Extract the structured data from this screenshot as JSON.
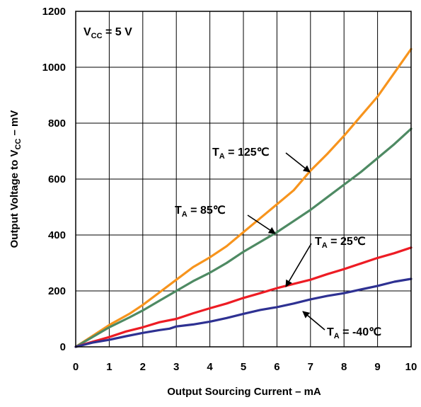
{
  "chart_data": {
    "type": "line",
    "xlabel": "Output Sourcing Current – mA",
    "ylabel": {
      "main": "Output Voltage to V",
      "sub": "CC",
      "rest": " – mV"
    },
    "xlim": [
      0,
      10
    ],
    "ylim": [
      0,
      1200
    ],
    "x_ticks": [
      "0",
      "1",
      "2",
      "3",
      "4",
      "5",
      "6",
      "7",
      "8",
      "9",
      "10"
    ],
    "y_ticks": [
      "0",
      "200",
      "400",
      "600",
      "800",
      "1000",
      "1200"
    ],
    "grid": true,
    "condition": {
      "main": "V",
      "sub": "CC",
      "rest": " = 5 V"
    },
    "series": [
      {
        "name": "T_A = 125℃",
        "label": {
          "main": "T",
          "sub": "A",
          "rest": " = 125℃"
        },
        "color": "#F7941D",
        "x": [
          0,
          1,
          1.6,
          2,
          2.5,
          3,
          3.5,
          4,
          4.5,
          5,
          5.5,
          6,
          6.5,
          7,
          7.5,
          8,
          8.5,
          9,
          9.5,
          10
        ],
        "y": [
          0,
          78,
          118,
          150,
          195,
          240,
          285,
          320,
          360,
          410,
          460,
          510,
          560,
          630,
          690,
          755,
          825,
          895,
          980,
          1065
        ]
      },
      {
        "name": "T_A = 85℃",
        "label": {
          "main": "T",
          "sub": "A",
          "rest": " = 85℃"
        },
        "color": "#4E8A63",
        "x": [
          0,
          1,
          1.6,
          2,
          2.5,
          3,
          3.5,
          4,
          4.5,
          5,
          5.5,
          6,
          6.5,
          7,
          7.5,
          8,
          8.5,
          9,
          9.5,
          10
        ],
        "y": [
          0,
          70,
          105,
          130,
          165,
          200,
          235,
          265,
          300,
          340,
          375,
          410,
          450,
          490,
          535,
          580,
          625,
          675,
          725,
          780
        ]
      },
      {
        "name": "T_A = 25℃",
        "label": {
          "main": "T",
          "sub": "A",
          "rest": " = 25℃"
        },
        "color": "#ED1C24",
        "x": [
          0,
          0.5,
          1,
          1.5,
          2,
          2.5,
          3,
          3.5,
          4,
          4.5,
          5,
          5.5,
          6,
          6.5,
          7,
          7.5,
          8,
          8.5,
          9,
          9.5,
          10
        ],
        "y": [
          0,
          18,
          35,
          55,
          70,
          88,
          100,
          120,
          138,
          155,
          175,
          192,
          210,
          225,
          240,
          260,
          278,
          298,
          318,
          335,
          355
        ]
      },
      {
        "name": "T_A = -40℃",
        "label": {
          "main": "T",
          "sub": "A",
          "rest": " = -40℃"
        },
        "color": "#2E3192",
        "x": [
          0,
          0.5,
          1,
          1.5,
          2,
          2.5,
          2.8,
          3,
          3.5,
          4,
          4.5,
          5,
          5.5,
          6,
          6.5,
          7,
          7.5,
          8,
          8.5,
          9,
          9.5,
          10
        ],
        "y": [
          0,
          15,
          25,
          38,
          50,
          60,
          65,
          73,
          80,
          90,
          103,
          118,
          132,
          142,
          155,
          170,
          182,
          192,
          205,
          218,
          233,
          243
        ]
      }
    ]
  }
}
